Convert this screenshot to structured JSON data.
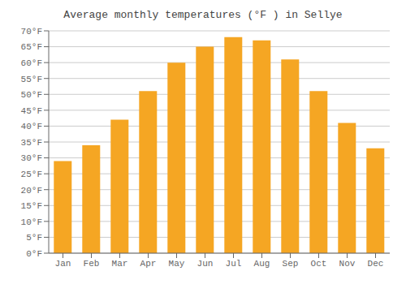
{
  "chart_data": {
    "type": "bar",
    "title": "Average monthly temperatures (°F ) in Sellye",
    "categories": [
      "Jan",
      "Feb",
      "Mar",
      "Apr",
      "May",
      "Jun",
      "Jul",
      "Aug",
      "Sep",
      "Oct",
      "Nov",
      "Dec"
    ],
    "values": [
      29,
      34,
      42,
      51,
      60,
      65,
      68,
      67,
      61,
      51,
      41,
      33
    ],
    "color": "#F5A623",
    "ylim": [
      0,
      70
    ],
    "yticks": [
      {
        "value": 0,
        "label": "0°F"
      },
      {
        "value": 5,
        "label": "5°F"
      },
      {
        "value": 10,
        "label": "10°F"
      },
      {
        "value": 15,
        "label": "15°F"
      },
      {
        "value": 20,
        "label": "20°F"
      },
      {
        "value": 25,
        "label": "25°F"
      },
      {
        "value": 30,
        "label": "30°F"
      },
      {
        "value": 35,
        "label": "35°F"
      },
      {
        "value": 40,
        "label": "40°F"
      },
      {
        "value": 45,
        "label": "45°F"
      },
      {
        "value": 50,
        "label": "50°F"
      },
      {
        "value": 55,
        "label": "55°F"
      },
      {
        "value": 60,
        "label": "60°F"
      },
      {
        "value": 65,
        "label": "65°F"
      },
      {
        "value": 70,
        "label": "70°F"
      }
    ],
    "grid": true
  }
}
